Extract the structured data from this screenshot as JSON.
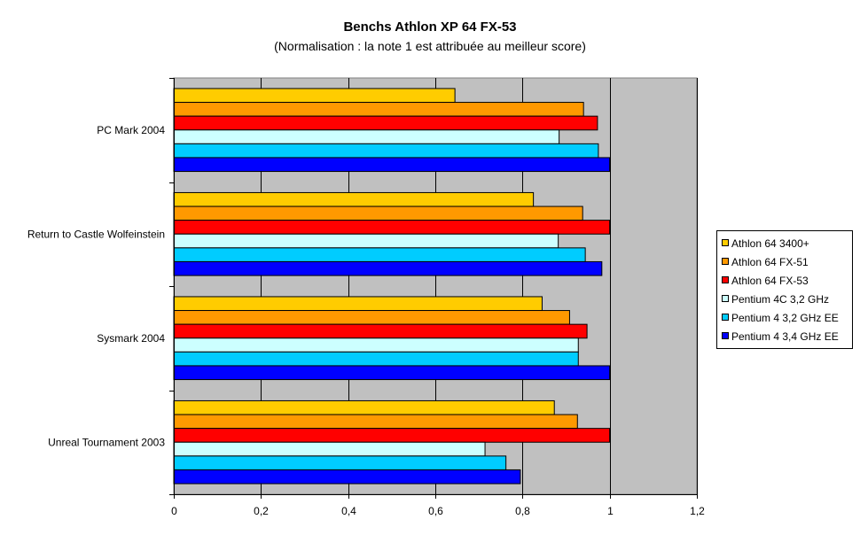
{
  "chart_data": {
    "type": "bar",
    "orientation": "horizontal",
    "title": "Benchs Athlon XP 64 FX-53",
    "subtitle": "(Normalisation : la note 1 est attribuée au meilleur score)",
    "categories": [
      "PC Mark 2004",
      "Return to Castle Wolfeinstein",
      "Sysmark 2004",
      "Unreal Tournament 2003"
    ],
    "xlim": [
      0,
      1.2
    ],
    "xticks": [
      "0",
      "0,2",
      "0,4",
      "0,6",
      "0,8",
      "1",
      "1,2"
    ],
    "grid": true,
    "legend_position": "right",
    "plot_background": "#c0c0c0",
    "series": [
      {
        "name": "Athlon 64 3400+",
        "color": "#ffcc00",
        "values": [
          0.645,
          0.825,
          0.845,
          0.873
        ]
      },
      {
        "name": "Athlon 64 FX-51",
        "color": "#ff9900",
        "values": [
          0.94,
          0.938,
          0.908,
          0.926
        ]
      },
      {
        "name": "Athlon 64 FX-53",
        "color": "#ff0000",
        "values": [
          0.972,
          1.0,
          0.948,
          1.0
        ]
      },
      {
        "name": "Pentium 4C 3,2 GHz",
        "color": "#ccffff",
        "values": [
          0.884,
          0.882,
          0.928,
          0.714
        ]
      },
      {
        "name": "Pentium 4 3,2 GHz EE",
        "color": "#00ccff",
        "values": [
          0.974,
          0.944,
          0.928,
          0.762
        ]
      },
      {
        "name": "Pentium 4 3,4 GHz EE",
        "color": "#0000ff",
        "values": [
          1.0,
          0.982,
          1.0,
          0.795
        ]
      }
    ]
  }
}
